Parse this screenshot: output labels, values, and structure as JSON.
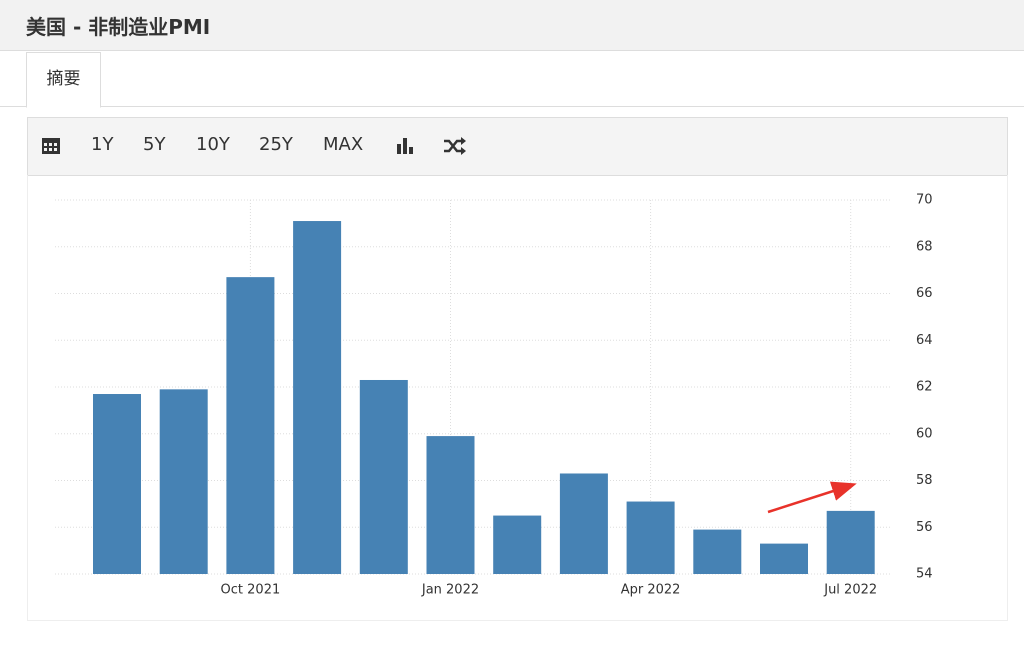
{
  "header": {
    "title": "美国 - 非制造业PMI"
  },
  "tabs": [
    "摘要"
  ],
  "toolbar": [
    "1Y",
    "5Y",
    "10Y",
    "25Y",
    "MAX"
  ],
  "chart_data": {
    "type": "bar",
    "categories": [
      null,
      null,
      "Oct 2021",
      null,
      null,
      "Jan 2022",
      null,
      null,
      "Apr 2022",
      null,
      null,
      "Jul 2022"
    ],
    "values": [
      61.7,
      61.9,
      66.7,
      69.1,
      62.3,
      59.9,
      56.5,
      58.3,
      57.1,
      55.9,
      55.3,
      56.7
    ],
    "color": "#4682b4",
    "ylim": [
      54,
      70
    ],
    "yticks": [
      54,
      56,
      58,
      60,
      62,
      64,
      66,
      68,
      70
    ],
    "grid": true
  }
}
